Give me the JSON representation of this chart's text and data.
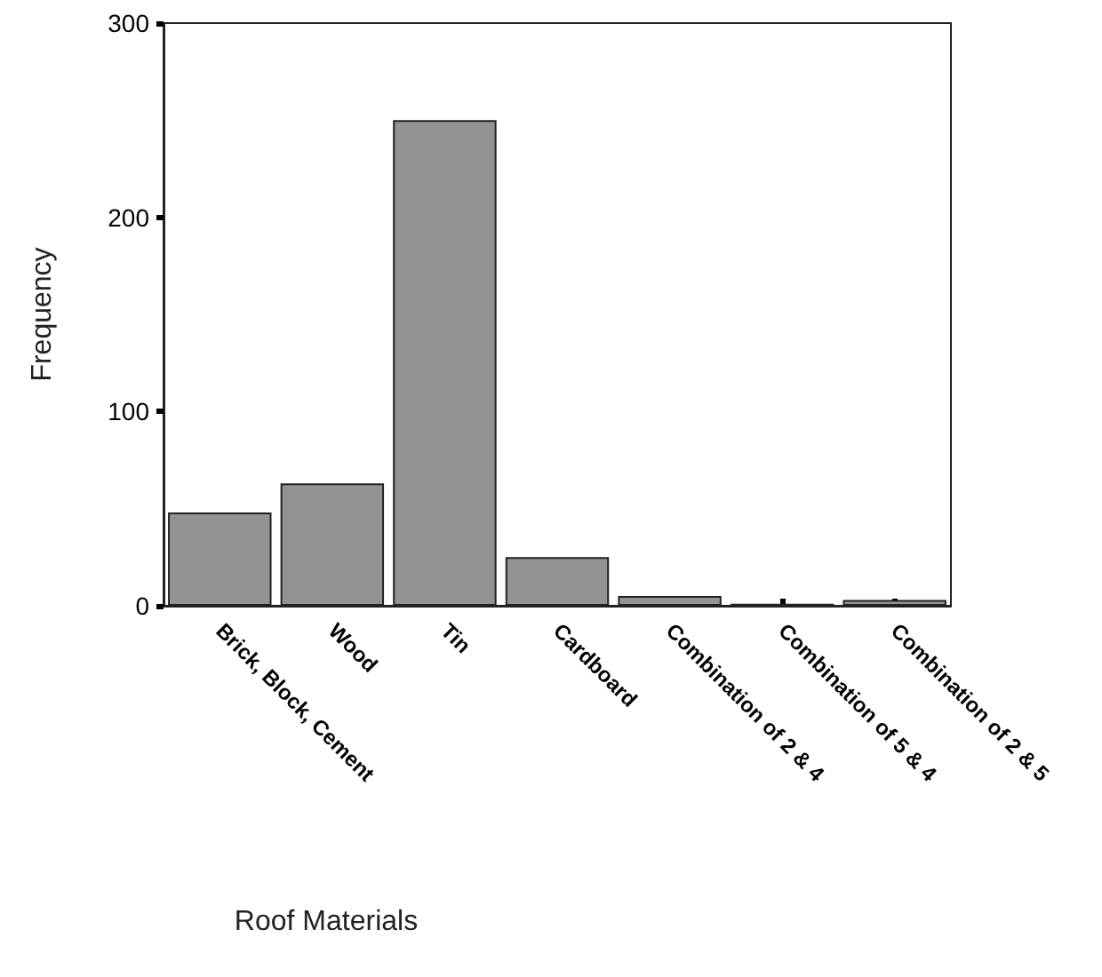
{
  "chart_data": {
    "type": "bar",
    "xlabel": "Roof Materials",
    "ylabel": "Frequency",
    "categories": [
      "Brick, Block, Cement",
      "Wood",
      "Tin",
      "Cardboard",
      "Combination of 2 & 4",
      "Combination of 5 & 4",
      "Combination of 2 & 5"
    ],
    "values": [
      48,
      63,
      250,
      25,
      5,
      1,
      3
    ],
    "color": "#939393",
    "ylim": [
      0,
      300
    ],
    "yticks": [
      0,
      100,
      200,
      300
    ],
    "grid": false
  }
}
